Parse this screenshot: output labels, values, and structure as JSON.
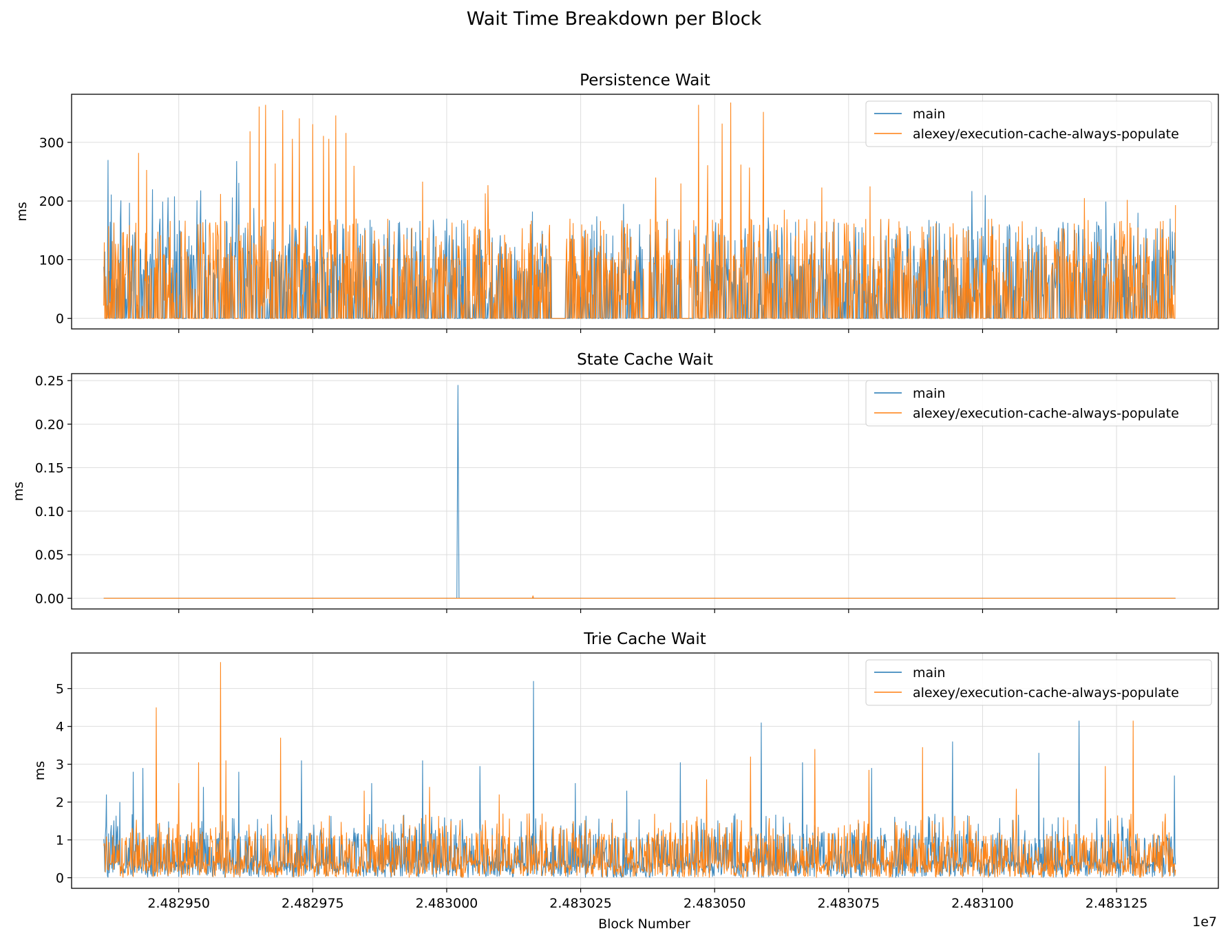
{
  "figure": {
    "title": "Wait Time Breakdown per Block",
    "xlabel": "Block Number",
    "x_offset_label": "1e7"
  },
  "colors": {
    "main": "#1f77b4",
    "branch": "#ff7f0e",
    "grid": "#dddddd"
  },
  "chart_data": [
    {
      "type": "line",
      "title": "Persistence Wait",
      "xlabel": "",
      "ylabel": "ms",
      "xlim": [
        24829300,
        24831440
      ],
      "ylim": [
        -18,
        382
      ],
      "x_ticks": [
        24829500,
        24829750,
        24830000,
        24830250,
        24830500,
        24830750,
        24831000,
        24831250
      ],
      "x_tick_labels": [
        "2.482950",
        "2.482975",
        "2.483000",
        "2.483025",
        "2.483050",
        "2.483075",
        "2.483100",
        "2.483125"
      ],
      "y_ticks": [
        0,
        100,
        200,
        300
      ],
      "y_tick_labels": [
        "0",
        "100",
        "200",
        "300"
      ],
      "grid": true,
      "legend": "top-right",
      "series": [
        {
          "name": "main",
          "x_range": [
            24829360,
            24831360
          ],
          "peaks": [
            {
              "x": 24829360,
              "y": 88
            },
            {
              "x": 24829368,
              "y": 270
            },
            {
              "x": 24829374,
              "y": 211
            },
            {
              "x": 24829392,
              "y": 201
            },
            {
              "x": 24829408,
              "y": 197
            },
            {
              "x": 24829451,
              "y": 220
            },
            {
              "x": 24829470,
              "y": 199
            },
            {
              "x": 24829480,
              "y": 206
            },
            {
              "x": 24829492,
              "y": 208
            },
            {
              "x": 24829541,
              "y": 218
            },
            {
              "x": 24829534,
              "y": 201
            },
            {
              "x": 24829600,
              "y": 206
            },
            {
              "x": 24829608,
              "y": 268
            },
            {
              "x": 24829612,
              "y": 231
            },
            {
              "x": 24829640,
              "y": 188
            },
            {
              "x": 24829740,
              "y": 165
            },
            {
              "x": 24829860,
              "y": 156
            },
            {
              "x": 24829950,
              "y": 166
            },
            {
              "x": 24830000,
              "y": 170
            },
            {
              "x": 24830160,
              "y": 182
            },
            {
              "x": 24830280,
              "y": 174
            },
            {
              "x": 24830330,
              "y": 195
            },
            {
              "x": 24830450,
              "y": 175
            },
            {
              "x": 24830600,
              "y": 172
            },
            {
              "x": 24830980,
              "y": 217
            },
            {
              "x": 24831005,
              "y": 210
            },
            {
              "x": 24831100,
              "y": 156
            },
            {
              "x": 24831230,
              "y": 199
            },
            {
              "x": 24831290,
              "y": 180
            },
            {
              "x": 24831350,
              "y": 170
            }
          ],
          "gaps": [
            [
              24830196,
              24830220
            ],
            [
              24830368,
              24830378
            ],
            [
              24830440,
              24830456
            ],
            [
              24830470,
              24830476
            ]
          ]
        },
        {
          "name": "alexey/execution-cache-always-populate",
          "x_range": [
            24829360,
            24831360
          ],
          "peaks": [
            {
              "x": 24829425,
              "y": 282
            },
            {
              "x": 24829440,
              "y": 253
            },
            {
              "x": 24829578,
              "y": 212
            },
            {
              "x": 24829633,
              "y": 319
            },
            {
              "x": 24829650,
              "y": 361
            },
            {
              "x": 24829662,
              "y": 364
            },
            {
              "x": 24829680,
              "y": 264
            },
            {
              "x": 24829694,
              "y": 355
            },
            {
              "x": 24829712,
              "y": 306
            },
            {
              "x": 24829725,
              "y": 341
            },
            {
              "x": 24829750,
              "y": 331
            },
            {
              "x": 24829770,
              "y": 311
            },
            {
              "x": 24829780,
              "y": 306
            },
            {
              "x": 24829793,
              "y": 346
            },
            {
              "x": 24829812,
              "y": 316
            },
            {
              "x": 24829827,
              "y": 260
            },
            {
              "x": 24829955,
              "y": 233
            },
            {
              "x": 24830077,
              "y": 227
            },
            {
              "x": 24830072,
              "y": 213
            },
            {
              "x": 24830218,
              "y": 150
            },
            {
              "x": 24830390,
              "y": 240
            },
            {
              "x": 24830437,
              "y": 230
            },
            {
              "x": 24830452,
              "y": 272
            },
            {
              "x": 24830470,
              "y": 364
            },
            {
              "x": 24830487,
              "y": 261
            },
            {
              "x": 24830514,
              "y": 332
            },
            {
              "x": 24830530,
              "y": 368
            },
            {
              "x": 24830549,
              "y": 262
            },
            {
              "x": 24830565,
              "y": 257
            },
            {
              "x": 24830591,
              "y": 352
            },
            {
              "x": 24830630,
              "y": 185
            },
            {
              "x": 24830700,
              "y": 223
            },
            {
              "x": 24830790,
              "y": 225
            },
            {
              "x": 24831190,
              "y": 205
            },
            {
              "x": 24831270,
              "y": 202
            },
            {
              "x": 24831360,
              "y": 193
            }
          ],
          "gaps": [
            [
              24830196,
              24830222
            ],
            [
              24830368,
              24830376
            ],
            [
              24830440,
              24830452
            ]
          ]
        }
      ]
    },
    {
      "type": "line",
      "title": "State Cache Wait",
      "xlabel": "",
      "ylabel": "ms",
      "xlim": [
        24829300,
        24831440
      ],
      "ylim": [
        -0.0123,
        0.258
      ],
      "x_ticks": [
        24829500,
        24829750,
        24830000,
        24830250,
        24830500,
        24830750,
        24831000,
        24831250
      ],
      "y_ticks": [
        0,
        0.05,
        0.1,
        0.15,
        0.2,
        0.25
      ],
      "y_tick_labels": [
        "0.00",
        "0.05",
        "0.10",
        "0.15",
        "0.20",
        "0.25"
      ],
      "grid": true,
      "legend": "top-right",
      "series": [
        {
          "name": "main",
          "x_range": [
            24829360,
            24831360
          ],
          "points": [
            [
              24829360,
              0
            ],
            [
              24830019,
              0
            ],
            [
              24830021,
              0.245
            ],
            [
              24830023,
              0
            ],
            [
              24831360,
              0
            ]
          ]
        },
        {
          "name": "alexey/execution-cache-always-populate",
          "x_range": [
            24829360,
            24831360
          ],
          "points": [
            [
              24829360,
              0
            ],
            [
              24830160,
              0
            ],
            [
              24830161,
              0.003
            ],
            [
              24830162,
              0
            ],
            [
              24831360,
              0
            ]
          ]
        }
      ]
    },
    {
      "type": "line",
      "title": "Trie Cache Wait",
      "xlabel": "Block Number",
      "ylabel": "ms",
      "xlim": [
        24829300,
        24831440
      ],
      "ylim": [
        -0.28,
        5.94
      ],
      "x_ticks": [
        24829500,
        24829750,
        24830000,
        24830250,
        24830500,
        24830750,
        24831000,
        24831250
      ],
      "x_tick_labels": [
        "2.482950",
        "2.482975",
        "2.483000",
        "2.483025",
        "2.483050",
        "2.483075",
        "2.483100",
        "2.483125"
      ],
      "y_ticks": [
        0,
        1,
        2,
        3,
        4,
        5
      ],
      "y_tick_labels": [
        "0",
        "1",
        "2",
        "3",
        "4",
        "5"
      ],
      "grid": true,
      "legend": "top-right",
      "series": [
        {
          "name": "main",
          "x_range": [
            24829360,
            24831360
          ],
          "peaks": [
            {
              "x": 24829365,
              "y": 2.2
            },
            {
              "x": 24829390,
              "y": 2.0
            },
            {
              "x": 24829415,
              "y": 2.8
            },
            {
              "x": 24829433,
              "y": 2.9
            },
            {
              "x": 24829546,
              "y": 2.4
            },
            {
              "x": 24829612,
              "y": 2.8
            },
            {
              "x": 24829729,
              "y": 3.1
            },
            {
              "x": 24829860,
              "y": 2.5
            },
            {
              "x": 24829955,
              "y": 3.1
            },
            {
              "x": 24830062,
              "y": 2.95
            },
            {
              "x": 24830162,
              "y": 5.2
            },
            {
              "x": 24830240,
              "y": 2.5
            },
            {
              "x": 24830336,
              "y": 2.3
            },
            {
              "x": 24830436,
              "y": 3.05
            },
            {
              "x": 24830587,
              "y": 4.1
            },
            {
              "x": 24830664,
              "y": 3.05
            },
            {
              "x": 24830793,
              "y": 2.9
            },
            {
              "x": 24830944,
              "y": 3.6
            },
            {
              "x": 24831105,
              "y": 3.3
            },
            {
              "x": 24831180,
              "y": 4.15
            },
            {
              "x": 24831358,
              "y": 2.7
            }
          ]
        },
        {
          "name": "alexey/execution-cache-always-populate",
          "x_range": [
            24829360,
            24831360
          ],
          "peaks": [
            {
              "x": 24829458,
              "y": 4.5
            },
            {
              "x": 24829500,
              "y": 2.5
            },
            {
              "x": 24829537,
              "y": 3.05
            },
            {
              "x": 24829578,
              "y": 5.7
            },
            {
              "x": 24829588,
              "y": 3.1
            },
            {
              "x": 24829690,
              "y": 3.7
            },
            {
              "x": 24829846,
              "y": 2.3
            },
            {
              "x": 24829968,
              "y": 2.4
            },
            {
              "x": 24830098,
              "y": 2.2
            },
            {
              "x": 24830485,
              "y": 2.6
            },
            {
              "x": 24830567,
              "y": 3.2
            },
            {
              "x": 24830687,
              "y": 3.4
            },
            {
              "x": 24830788,
              "y": 2.85
            },
            {
              "x": 24830888,
              "y": 3.45
            },
            {
              "x": 24831063,
              "y": 2.35
            },
            {
              "x": 24831229,
              "y": 2.95
            },
            {
              "x": 24831281,
              "y": 4.15
            }
          ]
        }
      ]
    }
  ]
}
